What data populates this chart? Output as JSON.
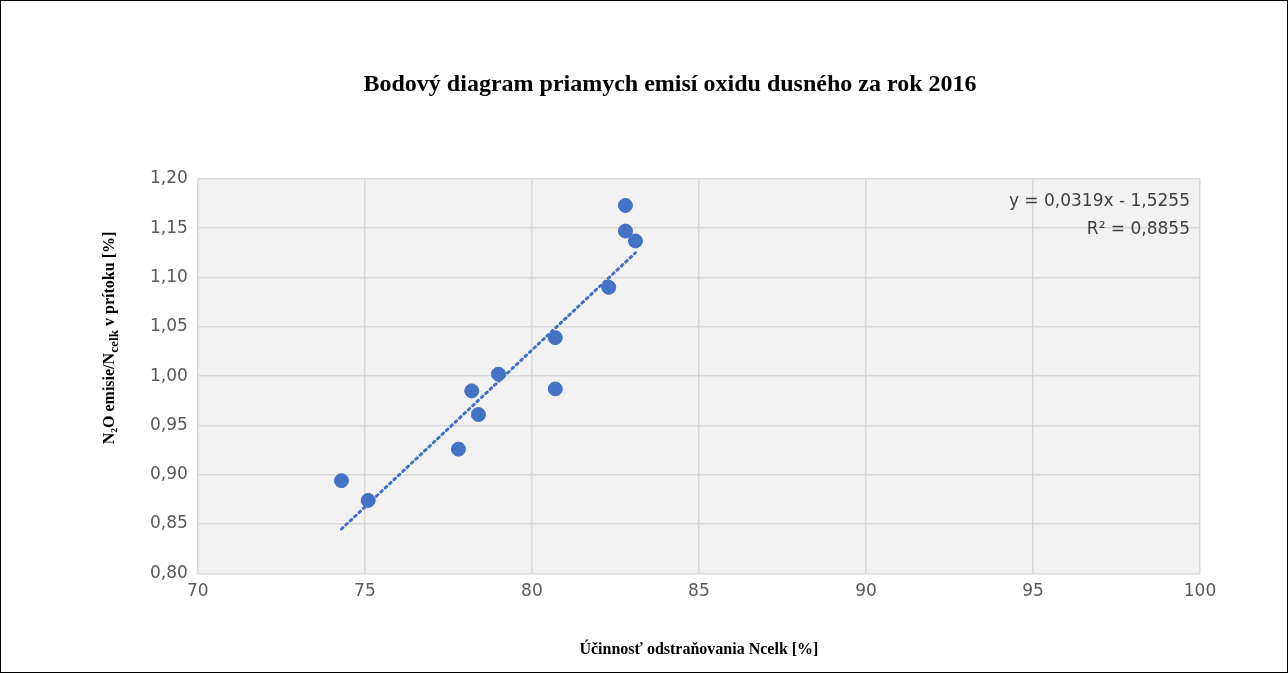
{
  "chart_data": {
    "type": "scatter",
    "title": "Bodový diagram priamych emisí oxidu dusného za rok 2016",
    "xlabel": "Účinnosť odstraňovania Ncelk [%]",
    "ylabel": "N₂O emisie/N$_{celk}$ v prítoku [%]",
    "series": [
      {
        "color": "#4472c4",
        "marker": "circle",
        "x": [
          74.3,
          75.1,
          77.8,
          78.2,
          78.4,
          79.0,
          80.7,
          80.7,
          82.3,
          82.8,
          82.8,
          83.1
        ],
        "values": [
          0.894,
          0.874,
          0.926,
          0.985,
          0.961,
          1.002,
          0.987,
          1.039,
          1.09,
          1.147,
          1.173,
          1.137
        ]
      },
      {
        "type": "line",
        "color": "#4472c4",
        "marker": "none",
        "line_style": "dotted",
        "x": [
          74.3,
          83.1
        ],
        "values": [
          0.845,
          1.125
        ]
      }
    ],
    "xlim": [
      70,
      100
    ],
    "xticks": [
      70,
      75,
      80,
      85,
      90,
      95,
      100
    ],
    "ylim": [
      0.8,
      1.2
    ],
    "yticks": [
      {
        "value": 0.8,
        "label": "0,80"
      },
      {
        "value": 0.85,
        "label": "0,85"
      },
      {
        "value": 0.9,
        "label": "0,90"
      },
      {
        "value": 0.95,
        "label": "0,95"
      },
      {
        "value": 1.0,
        "label": "1,00"
      },
      {
        "value": 1.05,
        "label": "1,05"
      },
      {
        "value": 1.1,
        "label": "1,10"
      },
      {
        "value": 1.15,
        "label": "1,15"
      },
      {
        "value": 1.2,
        "label": "1,20"
      }
    ],
    "grid": true,
    "legend": false,
    "annotations": [
      "y = 0,0319x - 1,5255",
      "R² = 0,8855"
    ]
  }
}
